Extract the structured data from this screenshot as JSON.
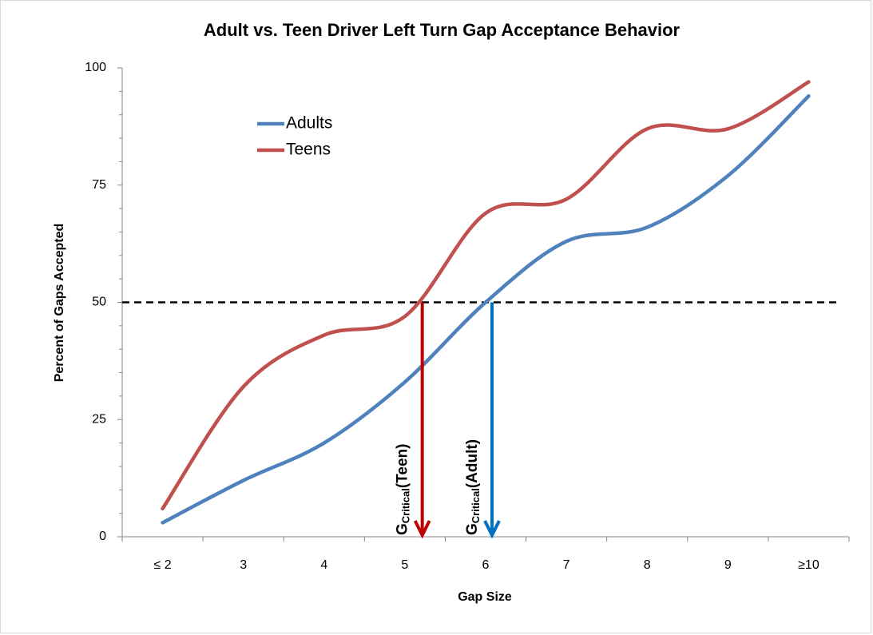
{
  "chart_data": {
    "type": "line",
    "title": "Adult vs. Teen Driver Left Turn Gap Acceptance Behavior",
    "x_label": "Gap Size",
    "y_label": "Percent of Gaps Accepted",
    "categories": [
      "≤ 2",
      "3",
      "4",
      "5",
      "6",
      "7",
      "8",
      "9",
      "≥10"
    ],
    "series": [
      {
        "name": "Adults",
        "color": "#4f81bd",
        "values": [
          3,
          12,
          20,
          33,
          50,
          63,
          66,
          77,
          94
        ]
      },
      {
        "name": "Teens",
        "color": "#c0504d",
        "values": [
          6,
          32,
          43,
          47,
          69,
          72,
          87,
          87,
          97
        ]
      }
    ],
    "ylim": [
      0,
      100
    ],
    "yticks": [
      0,
      25,
      50,
      75,
      100
    ],
    "reference_line": 50,
    "annotations": [
      {
        "series": 1,
        "color": "#c00000",
        "text": "G",
        "sub": "Critical",
        "suffix": "(Teen)"
      },
      {
        "series": 0,
        "color": "#0070c0",
        "text": "G",
        "sub": "Critical",
        "suffix": "(Adult)"
      }
    ],
    "legend": "upper left",
    "grid": false
  }
}
